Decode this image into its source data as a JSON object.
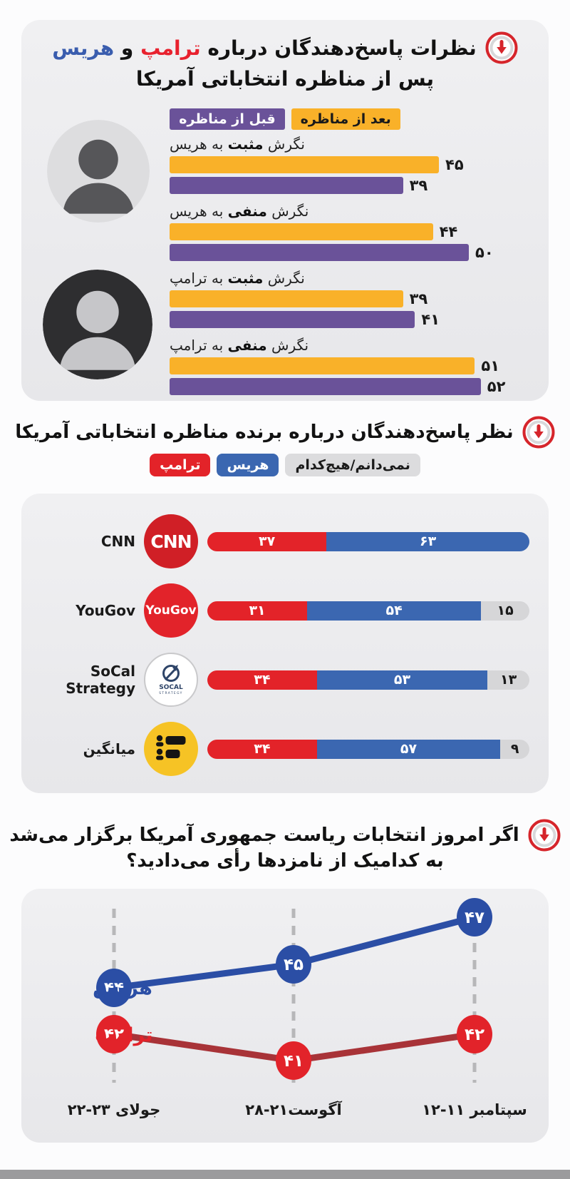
{
  "colors": {
    "after_debate": "#F9B129",
    "before_debate": "#6A5299",
    "trump_red": "#E32329",
    "harris_blue": "#3B67B1",
    "dont_know_gray": "#D6D6D8",
    "card_gray": "#ECECEE",
    "trump_line": "#A83338",
    "harris_line": "#2B4EA5",
    "footer_gray": "#9B9B9D"
  },
  "section1": {
    "title": {
      "prefix": "نظرات پاسخ‌دهندگان درباره",
      "trump": "ترامپ",
      "conj": "و",
      "harris": "هریس",
      "line2": "پس از مناظره انتخاباتی آمریکا"
    },
    "legend": [
      {
        "label": "بعد از مناظره",
        "color": "#F9B129"
      },
      {
        "label": "قبل از مناظره",
        "color": "#6A5299"
      }
    ],
    "groups": [
      {
        "label_pre": "نگرش",
        "label_bold": "مثبت",
        "label_post": "به هریس",
        "after": 45,
        "after_fa": "۴۵",
        "before": 39,
        "before_fa": "۳۹"
      },
      {
        "label_pre": "نگرش",
        "label_bold": "منفی",
        "label_post": "به هریس",
        "after": 44,
        "after_fa": "۴۴",
        "before": 50,
        "before_fa": "۵۰"
      },
      {
        "label_pre": "نگرش",
        "label_bold": "مثبت",
        "label_post": "به ترامپ",
        "after": 39,
        "after_fa": "۳۹",
        "before": 41,
        "before_fa": "۴۱"
      },
      {
        "label_pre": "نگرش",
        "label_bold": "منفی",
        "label_post": "به ترامپ",
        "after": 51,
        "after_fa": "۵۱",
        "before": 52,
        "before_fa": "۵۲"
      }
    ]
  },
  "section2": {
    "title": "نظر پاسخ‌دهندگان درباره برنده مناظره انتخاباتی آمریکا",
    "legend": [
      {
        "label": "نمی‌دانم/هیچ‌کدام",
        "color": "#DCDCDE"
      },
      {
        "label": "هریس",
        "color": "#3B67B1"
      },
      {
        "label": "ترامپ",
        "color": "#E32329"
      }
    ],
    "rows": [
      {
        "source": "CNN",
        "logo": "cnn",
        "logo_text": "CNN",
        "trump": 37,
        "trump_fa": "۳۷",
        "harris": 63,
        "harris_fa": "۶۳",
        "other": 0,
        "other_fa": ""
      },
      {
        "source": "YouGov",
        "logo": "yougov",
        "logo_text": "YouGov",
        "trump": 31,
        "trump_fa": "۳۱",
        "harris": 54,
        "harris_fa": "۵۴",
        "other": 15,
        "other_fa": "۱۵"
      },
      {
        "source": "SoCal Strategy",
        "logo": "socal",
        "logo_text": "SOCAL",
        "logo_text2": "STRATEGY",
        "trump": 34,
        "trump_fa": "۳۴",
        "harris": 53,
        "harris_fa": "۵۳",
        "other": 13,
        "other_fa": "۱۳"
      },
      {
        "source": "میانگین",
        "logo": "average",
        "logo_text": "",
        "trump": 34,
        "trump_fa": "۳۴",
        "harris": 57,
        "harris_fa": "۵۷",
        "other": 9,
        "other_fa": "۹"
      }
    ]
  },
  "section3": {
    "title_line1": "اگر امروز انتخابات ریاست جمهوری آمریکا برگزار می‌شد",
    "title_line2": "به کدامیک از نامزدها رأی می‌دادید؟",
    "series": [
      {
        "name": "هریس",
        "color": "#2B4EA5",
        "line_color": "#2B4EA5",
        "values": [
          44,
          45,
          47
        ],
        "values_fa": [
          "۴۴",
          "۴۵",
          "۴۷"
        ]
      },
      {
        "name": "ترامپ",
        "color": "#E2232A",
        "line_color": "#A83338",
        "values": [
          42,
          41,
          42
        ],
        "values_fa": [
          "۴۲",
          "۴۱",
          "۴۲"
        ]
      }
    ],
    "x_labels": [
      "۲۲-۲۳ جولای",
      "۲۸-۲۱آگوست",
      "۱۲-۱۱ سپتامبر"
    ]
  },
  "chart_data": [
    {
      "type": "bar",
      "orientation": "horizontal",
      "title": "نظرات پاسخ‌دهندگان درباره ترامپ و هریس پس از مناظره انتخاباتی آمریکا",
      "categories": [
        "نگرش مثبت به هریس",
        "نگرش منفی به هریس",
        "نگرش مثبت به ترامپ",
        "نگرش منفی به ترامپ"
      ],
      "series": [
        {
          "name": "بعد از مناظره",
          "color": "#F9B129",
          "values": [
            45,
            44,
            39,
            51
          ]
        },
        {
          "name": "قبل از مناظره",
          "color": "#6A5299",
          "values": [
            39,
            50,
            41,
            52
          ]
        }
      ],
      "xlim": [
        0,
        60
      ],
      "legend_position": "top",
      "grid": false
    },
    {
      "type": "bar",
      "subtype": "stacked",
      "orientation": "horizontal",
      "title": "نظر پاسخ‌دهندگان درباره برنده مناظره انتخاباتی آمریکا",
      "categories": [
        "CNN",
        "YouGov",
        "SoCal Strategy",
        "میانگین"
      ],
      "series": [
        {
          "name": "ترامپ",
          "color": "#E32329",
          "values": [
            37,
            31,
            34,
            34
          ]
        },
        {
          "name": "هریس",
          "color": "#3B67B1",
          "values": [
            63,
            54,
            53,
            57
          ]
        },
        {
          "name": "نمی‌دانم/هیچ‌کدام",
          "color": "#D6D6D8",
          "values": [
            0,
            15,
            13,
            9
          ]
        }
      ],
      "xlim": [
        0,
        100
      ],
      "legend_position": "top",
      "grid": false
    },
    {
      "type": "line",
      "title": "اگر امروز انتخابات ریاست جمهوری آمریکا برگزار می‌شد به کدامیک از نامزدها رأی می‌دادید؟",
      "x": [
        "۲۲-۲۳ جولای",
        "۲۸-۲۱آگوست",
        "۱۲-۱۱ سپتامبر"
      ],
      "series": [
        {
          "name": "هریس",
          "color": "#2B4EA5",
          "values": [
            44,
            45,
            47
          ]
        },
        {
          "name": "ترامپ",
          "color": "#E2232A",
          "values": [
            42,
            41,
            42
          ]
        }
      ],
      "ylim": [
        38,
        50
      ],
      "grid": "vertical-dashed",
      "legend_position": "left"
    }
  ]
}
